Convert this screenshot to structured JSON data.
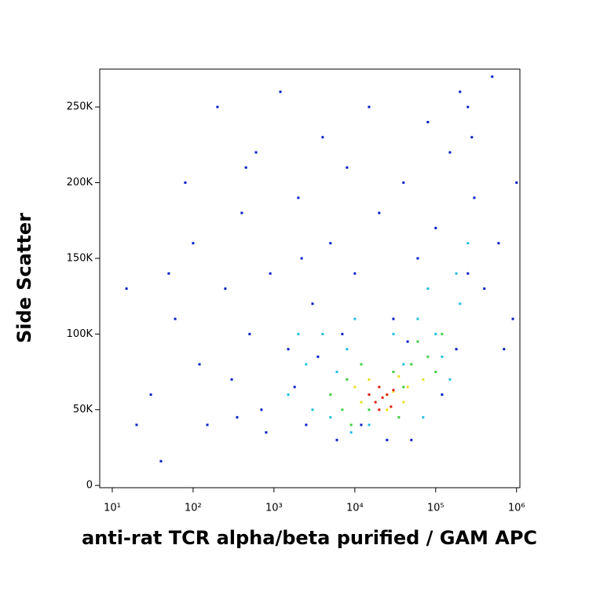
{
  "chart_data": {
    "type": "scatter",
    "x_label": "anti-rat TCR alpha/beta purified / GAM APC",
    "y_label": "Side Scatter",
    "xscale": "log",
    "xlim": [
      7,
      1100000
    ],
    "xticks": [
      {
        "value": 10,
        "label": "10¹"
      },
      {
        "value": 100,
        "label": "10²"
      },
      {
        "value": 1000,
        "label": "10³"
      },
      {
        "value": 10000,
        "label": "10⁴"
      },
      {
        "value": 100000,
        "label": "10⁵"
      },
      {
        "value": 1000000,
        "label": "10⁶"
      }
    ],
    "ylim": [
      -1500,
      275000
    ],
    "yticks": [
      0,
      {
        "value": 50000,
        "label": "50K"
      },
      {
        "value": 100000,
        "label": "100K"
      },
      {
        "value": 150000,
        "label": "150K"
      },
      {
        "value": 200000,
        "label": "200K"
      },
      {
        "value": 250000,
        "label": "250K"
      }
    ],
    "series": [
      {
        "color": "#0a1fc8",
        "x": [
          15,
          30,
          40,
          60,
          80,
          100,
          120,
          150,
          200,
          250,
          300,
          400,
          500,
          600,
          700,
          900,
          1200,
          1500,
          2000,
          2500,
          3000,
          4000,
          5000,
          6000,
          8000,
          10000,
          15000,
          20000,
          30000,
          40000,
          50000,
          60000,
          80000,
          100000,
          150000,
          200000,
          300000,
          400000,
          500000,
          700000,
          1000000,
          250000,
          180000,
          350,
          800,
          1800,
          2200,
          3500,
          7000,
          12000,
          25000,
          45000,
          120000,
          280000,
          600000,
          900000,
          20,
          50,
          250000,
          450
        ],
        "y": [
          130000,
          60000,
          16000,
          110000,
          200000,
          160000,
          80000,
          40000,
          250000,
          130000,
          70000,
          180000,
          100000,
          220000,
          50000,
          140000,
          260000,
          90000,
          190000,
          40000,
          120000,
          230000,
          160000,
          30000,
          210000,
          140000,
          250000,
          180000,
          110000,
          200000,
          30000,
          150000,
          240000,
          170000,
          220000,
          260000,
          190000,
          130000,
          270000,
          90000,
          200000,
          140000,
          90000,
          45000,
          35000,
          65000,
          150000,
          85000,
          100000,
          40000,
          30000,
          95000,
          60000,
          230000,
          160000,
          110000,
          40000,
          140000,
          250000,
          210000
        ]
      },
      {
        "color": "#20c0e0",
        "x": [
          1500,
          2500,
          3000,
          4000,
          5000,
          6000,
          8000,
          10000,
          15000,
          30000,
          40000,
          60000,
          80000,
          100000,
          120000,
          150000,
          200000,
          250000,
          70000,
          9000,
          2000,
          180000
        ],
        "y": [
          60000,
          80000,
          50000,
          100000,
          45000,
          75000,
          90000,
          110000,
          40000,
          100000,
          80000,
          110000,
          130000,
          100000,
          85000,
          70000,
          120000,
          160000,
          45000,
          35000,
          100000,
          140000
        ]
      },
      {
        "color": "#40d040",
        "x": [
          5000,
          7000,
          8000,
          12000,
          15000,
          30000,
          40000,
          50000,
          60000,
          80000,
          100000,
          120000,
          35000,
          9000
        ],
        "y": [
          60000,
          50000,
          70000,
          80000,
          50000,
          75000,
          65000,
          80000,
          95000,
          85000,
          75000,
          100000,
          45000,
          40000
        ]
      },
      {
        "color": "#e8e020",
        "x": [
          10000,
          12000,
          15000,
          25000,
          30000,
          35000,
          40000,
          45000,
          70000
        ],
        "y": [
          65000,
          55000,
          70000,
          50000,
          62000,
          72000,
          55000,
          65000,
          70000
        ]
      },
      {
        "color": "#e02010",
        "x": [
          15000,
          18000,
          20000,
          22000,
          25000,
          28000,
          30000,
          20000
        ],
        "y": [
          60000,
          55000,
          65000,
          58000,
          60000,
          52000,
          63000,
          50000
        ]
      }
    ]
  }
}
